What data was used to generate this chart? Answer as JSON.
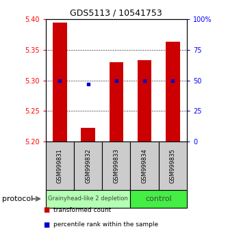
{
  "title": "GDS5113 / 10541753",
  "samples": [
    "GSM999831",
    "GSM999832",
    "GSM999833",
    "GSM999834",
    "GSM999835"
  ],
  "bar_values": [
    5.395,
    5.222,
    5.33,
    5.333,
    5.363
  ],
  "bar_base": 5.2,
  "percentile_values": [
    50,
    47,
    50,
    50,
    50
  ],
  "percentile_scale_min": 0,
  "percentile_scale_max": 100,
  "ylim": [
    5.2,
    5.4
  ],
  "yticks": [
    5.2,
    5.25,
    5.3,
    5.35,
    5.4
  ],
  "right_yticks": [
    0,
    25,
    50,
    75,
    100
  ],
  "right_yticklabels": [
    "0",
    "25",
    "50",
    "75",
    "100%"
  ],
  "bar_color": "#cc0000",
  "percentile_color": "#0000cc",
  "groups": [
    {
      "label": "Grainyhead-like 2 depletion",
      "indices": [
        0,
        1,
        2
      ],
      "color": "#b3ffb3"
    },
    {
      "label": "control",
      "indices": [
        3,
        4
      ],
      "color": "#44ee44"
    }
  ],
  "group_label_prefix": "protocol",
  "background_color": "#ffffff",
  "sample_box_color": "#cccccc",
  "legend_entries": [
    {
      "color": "#cc0000",
      "label": "transformed count"
    },
    {
      "color": "#0000cc",
      "label": "percentile rank within the sample"
    }
  ]
}
